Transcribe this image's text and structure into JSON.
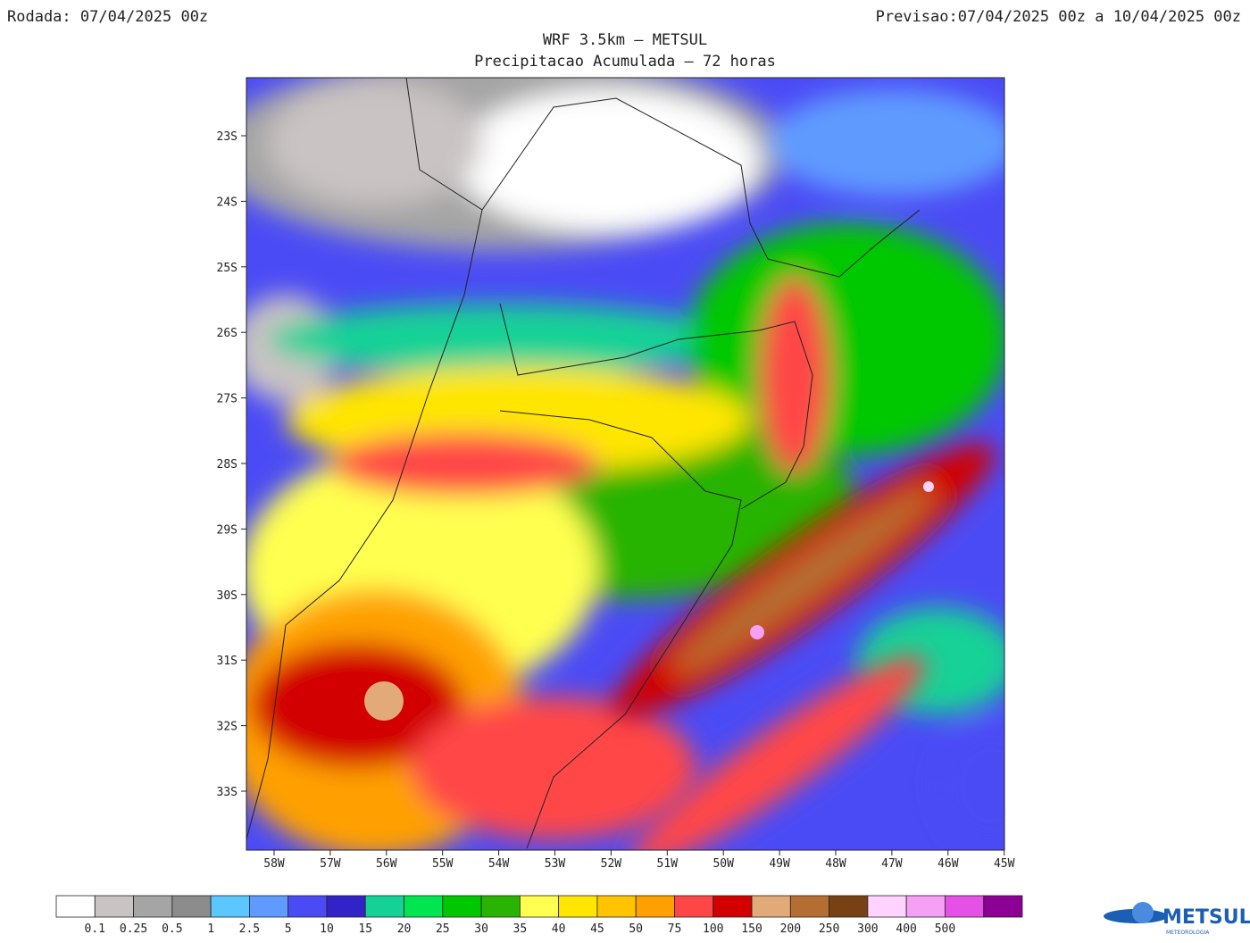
{
  "header": {
    "run": "Rodada: 07/04/2025 00z",
    "forecast": "Previsao:07/04/2025 00z a 10/04/2025 00z",
    "title": "WRF 3.5km — METSUL",
    "subtitle": "Precipitacao Acumulada — 72 horas"
  },
  "map": {
    "lat_labels": [
      "23S",
      "24S",
      "25S",
      "26S",
      "27S",
      "28S",
      "29S",
      "30S",
      "31S",
      "32S",
      "33S"
    ],
    "lon_labels": [
      "58W",
      "57W",
      "56W",
      "55W",
      "54W",
      "53W",
      "52W",
      "51W",
      "50W",
      "49W",
      "48W",
      "47W",
      "46W",
      "45W"
    ]
  },
  "colorbar": {
    "colors": [
      "#ffffff",
      "#c9c3c3",
      "#a5a5a5",
      "#8c8c8c",
      "#5ac8ff",
      "#5f9bff",
      "#4b4bf5",
      "#3223c8",
      "#14d296",
      "#00e650",
      "#00c800",
      "#28b400",
      "#ffff50",
      "#ffe600",
      "#ffc300",
      "#ffa000",
      "#ff4646",
      "#d20000",
      "#e1aa78",
      "#b46e32",
      "#784114",
      "#ffd2ff",
      "#f5a0f5",
      "#e650e6",
      "#8c0096"
    ],
    "labels": [
      "0.1",
      "0.25",
      "0.5",
      "1",
      "2.5",
      "5",
      "10",
      "15",
      "20",
      "25",
      "30",
      "35",
      "40",
      "45",
      "50",
      "75",
      "100",
      "150",
      "200",
      "250",
      "300",
      "400",
      "500"
    ]
  },
  "logo": {
    "name": "METSUL",
    "tagline": "METEOROLOGIA"
  }
}
